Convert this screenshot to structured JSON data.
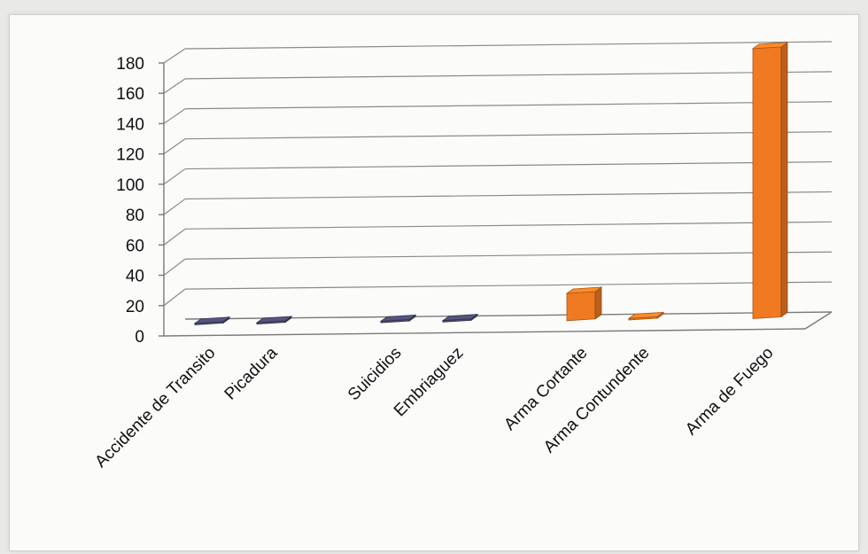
{
  "chart_data": {
    "type": "bar",
    "title": "",
    "xlabel": "",
    "ylabel": "",
    "ylim": [
      0,
      180
    ],
    "yticks": [
      0,
      20,
      40,
      60,
      80,
      100,
      120,
      140,
      160,
      180
    ],
    "categories": [
      "Accidente de Transito",
      "Picadura",
      "",
      "Suicidios",
      "Embriaguez",
      "",
      "Arma Cortante",
      "Arma Contundente",
      "",
      "Arma de Fuego"
    ],
    "values": [
      1,
      1,
      null,
      1,
      1,
      null,
      18,
      1,
      null,
      178
    ],
    "bar_colors": [
      "#4a4a6e",
      "#4a4a6e",
      null,
      "#4a4a6e",
      "#4a4a6e",
      null,
      "#f07a22",
      "#f07a22",
      null,
      "#f07a22"
    ],
    "grid": true,
    "legend": "none",
    "style": "3d"
  }
}
